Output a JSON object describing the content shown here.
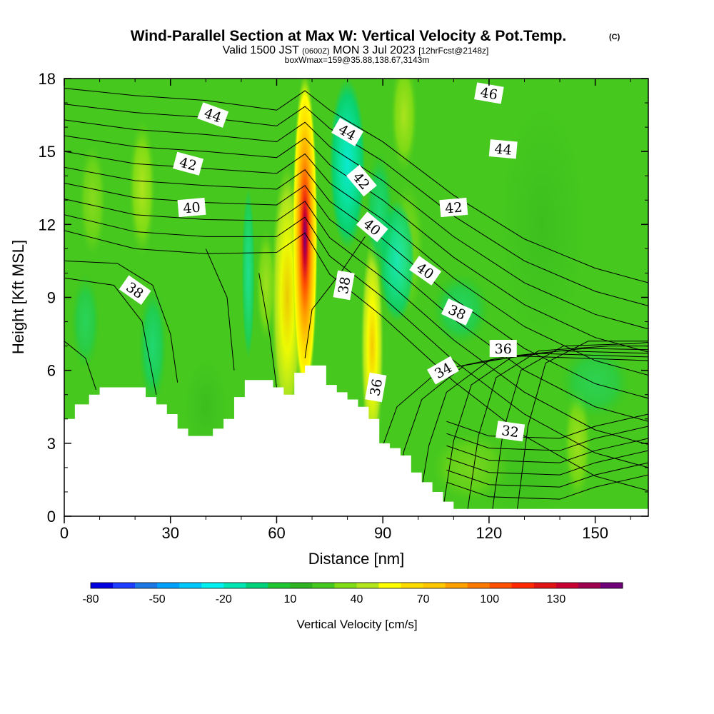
{
  "chart_data": {
    "type": "heatmap",
    "title": "Wind-Parallel Section at Max W: Vertical Velocity & Pot.Temp.",
    "title_mark": "(C)",
    "subtitle": {
      "valid_a": "Valid 1500 JST",
      "valid_b": "(0600Z)",
      "valid_c": "MON 3 Jul 2023",
      "valid_d": "[12hrFcst@2148z]",
      "box": "boxWmax=159@35.88,138.67,3143m"
    },
    "xlabel": "Distance [nm]",
    "ylabel": "Height [Kft MSL]",
    "xlim": [
      0,
      165
    ],
    "ylim": [
      0,
      18
    ],
    "x_ticks": [
      "0",
      "30",
      "60",
      "90",
      "120",
      "150"
    ],
    "x_tick_values": [
      0,
      30,
      60,
      90,
      120,
      150
    ],
    "y_ticks": [
      "0",
      "3",
      "6",
      "9",
      "12",
      "15",
      "18"
    ],
    "y_tick_values": [
      0,
      3,
      6,
      9,
      12,
      15,
      18
    ],
    "colorbar": {
      "title": "Vertical Velocity [cm/s]",
      "labels": [
        "-80",
        "-50",
        "-20",
        "10",
        "40",
        "70",
        "100",
        "130"
      ],
      "label_values": [
        -80,
        -50,
        -20,
        10,
        40,
        70,
        100,
        130
      ],
      "levels": [
        -80,
        -70,
        -60,
        -50,
        -40,
        -30,
        -20,
        -10,
        0,
        10,
        20,
        30,
        40,
        50,
        60,
        70,
        80,
        90,
        100,
        110,
        120,
        130,
        140,
        150
      ],
      "colors": [
        "#0000e0",
        "#1e3cff",
        "#1a78e6",
        "#00a0ff",
        "#00c8ff",
        "#00f0f0",
        "#00e6b4",
        "#00d27a",
        "#1ec832",
        "#2db41e",
        "#46c81e",
        "#82dc14",
        "#b4e61e",
        "#ffff00",
        "#ffdc00",
        "#ffc800",
        "#ffa000",
        "#ff7800",
        "#ff5000",
        "#ff2800",
        "#e01414",
        "#c80032",
        "#a00050",
        "#6e0078"
      ]
    },
    "terrain_top_kft": [
      [
        0,
        4.0
      ],
      [
        3,
        4.6
      ],
      [
        7,
        5.0
      ],
      [
        10,
        5.3
      ],
      [
        19,
        5.3
      ],
      [
        23,
        4.9
      ],
      [
        26,
        4.6
      ],
      [
        29,
        4.2
      ],
      [
        32,
        3.6
      ],
      [
        35,
        3.3
      ],
      [
        39,
        3.3
      ],
      [
        42,
        3.6
      ],
      [
        45,
        4.0
      ],
      [
        48,
        4.9
      ],
      [
        51,
        5.6
      ],
      [
        56,
        5.6
      ],
      [
        59,
        5.3
      ],
      [
        62,
        5.0
      ],
      [
        65,
        5.9
      ],
      [
        68,
        6.2
      ],
      [
        71,
        6.2
      ],
      [
        74,
        5.4
      ],
      [
        77,
        5.1
      ],
      [
        80,
        4.8
      ],
      [
        83,
        4.5
      ],
      [
        86,
        4.0
      ],
      [
        89,
        3.0
      ],
      [
        92,
        2.8
      ],
      [
        95,
        2.5
      ],
      [
        98,
        1.8
      ],
      [
        101,
        1.4
      ],
      [
        104,
        1.0
      ],
      [
        107,
        0.6
      ],
      [
        110,
        0.3
      ],
      [
        165,
        0.3
      ]
    ],
    "theta_contours_K": [
      {
        "level": 32,
        "label_at": [
          126,
          3.5
        ]
      },
      {
        "level": 34,
        "label_at": [
          107,
          6.0
        ]
      },
      {
        "level": 36,
        "label_at": [
          88,
          5.3
        ],
        "label_at_2": [
          124,
          6.9
        ]
      },
      {
        "level": 38,
        "label_at": [
          20,
          9.3
        ],
        "label_at_2": [
          79,
          9.5
        ],
        "label_at_3": [
          111,
          8.4
        ]
      },
      {
        "level": 40,
        "label_at": [
          36,
          12.7
        ],
        "label_at_2": [
          87,
          11.9
        ],
        "label_at_3": [
          102,
          10.1
        ]
      },
      {
        "level": 42,
        "label_at": [
          35,
          14.5
        ],
        "label_at_2": [
          84,
          13.8
        ],
        "label_at_3": [
          110,
          12.7
        ]
      },
      {
        "level": 44,
        "label_at": [
          42,
          16.5
        ],
        "label_at_2": [
          80,
          15.8
        ],
        "label_at_3": [
          124,
          15.1
        ]
      },
      {
        "level": 46,
        "label_at": [
          120,
          17.4
        ]
      }
    ],
    "max_w_cm_s": 159
  }
}
